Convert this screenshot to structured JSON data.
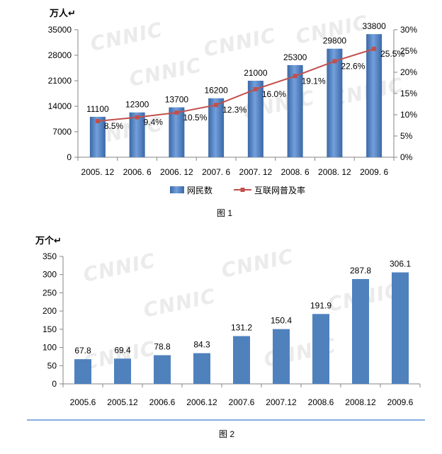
{
  "watermark": "CNNIC",
  "chart_data": [
    {
      "type": "bar",
      "caption": "图 1",
      "ylabel": "万人↵",
      "categories": [
        "2005. 12",
        "2006. 6",
        "2006. 12",
        "2007. 6",
        "2007. 12",
        "2008. 6",
        "2008. 12",
        "2009. 6"
      ],
      "ylim": [
        0,
        35000
      ],
      "yticks": [
        0,
        7000,
        14000,
        21000,
        28000,
        35000
      ],
      "y2lim": [
        0,
        30
      ],
      "y2ticks": [
        "0%",
        "5%",
        "10%",
        "15%",
        "20%",
        "25%",
        "30%"
      ],
      "grid": false,
      "legend": "bottom",
      "series": [
        {
          "name": "网民数",
          "type": "bar",
          "color": "#4f81bd",
          "values": [
            11100,
            12300,
            13700,
            16200,
            21000,
            25300,
            29800,
            33800
          ]
        },
        {
          "name": "互联网普及率",
          "type": "line",
          "color": "#c0504d",
          "values": [
            8.5,
            9.4,
            10.5,
            12.3,
            16.0,
            19.1,
            22.6,
            25.5
          ],
          "labels": [
            "8.5%",
            "9.4%",
            "10.5%",
            "12.3%",
            "16.0%",
            "19.1%",
            "22.6%",
            "25.5%"
          ]
        }
      ]
    },
    {
      "type": "bar",
      "caption": "图 2",
      "ylabel": "万个↵",
      "categories": [
        "2005.6",
        "2005.12",
        "2006.6",
        "2006.12",
        "2007.6",
        "2007.12",
        "2008.6",
        "2008.12",
        "2009.6"
      ],
      "ylim": [
        0,
        350
      ],
      "yticks": [
        0,
        50,
        100,
        150,
        200,
        250,
        300,
        350
      ],
      "grid": false,
      "series": [
        {
          "type": "bar",
          "color": "#4f81bd",
          "values": [
            67.8,
            69.4,
            78.8,
            84.3,
            131.2,
            150.4,
            191.9,
            287.8,
            306.1
          ]
        }
      ]
    }
  ]
}
